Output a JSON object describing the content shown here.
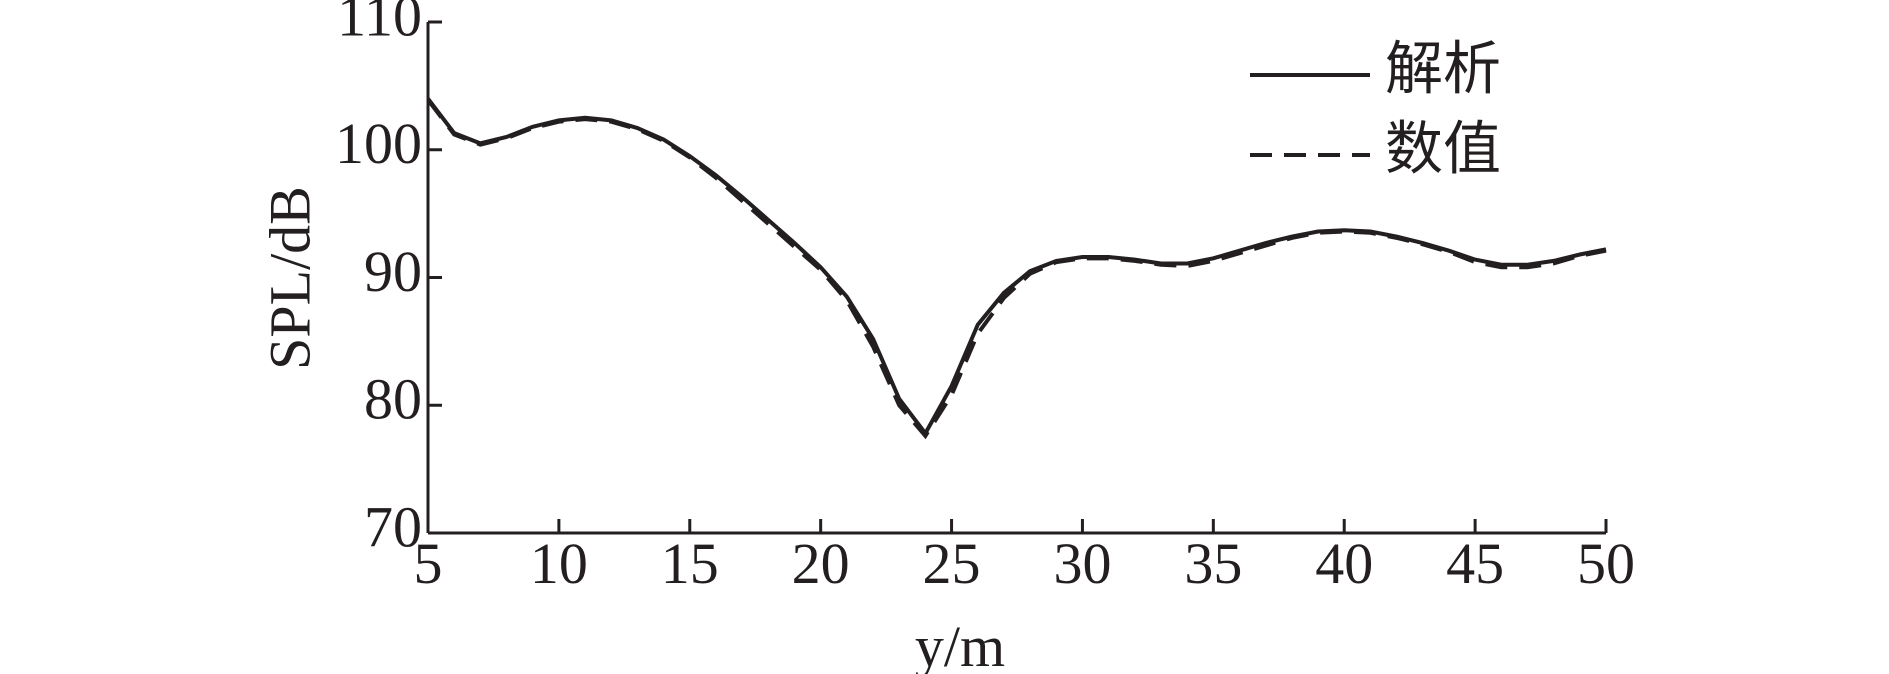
{
  "chart_data": {
    "type": "line",
    "xlabel": "y/m",
    "ylabel": "SPL/dB",
    "x": [
      5,
      6,
      7,
      8,
      9,
      10,
      11,
      12,
      13,
      14,
      15,
      16,
      17,
      18,
      19,
      20,
      21,
      22,
      23,
      24,
      25,
      26,
      27,
      28,
      29,
      30,
      31,
      32,
      33,
      34,
      35,
      36,
      37,
      38,
      39,
      40,
      41,
      42,
      43,
      44,
      45,
      46,
      47,
      48,
      49,
      50
    ],
    "series": [
      {
        "name": "解析",
        "color": "#231f20",
        "dash": "solid",
        "values": [
          104,
          101.3,
          100.5,
          101,
          101.8,
          102.3,
          102.5,
          102.3,
          101.7,
          100.8,
          99.5,
          98,
          96.3,
          94.5,
          92.7,
          90.8,
          88.5,
          85.2,
          80.5,
          77.8,
          81.5,
          86.3,
          88.8,
          90.5,
          91.3,
          91.6,
          91.6,
          91.4,
          91.1,
          91.1,
          91.5,
          92.1,
          92.7,
          93.2,
          93.6,
          93.7,
          93.6,
          93.2,
          92.7,
          92.1,
          91.4,
          91,
          91,
          91.3,
          91.8,
          92.2
        ]
      },
      {
        "name": "数值",
        "color": "#231f20",
        "dash": "dashed",
        "values": [
          103.9,
          101.2,
          100.4,
          100.9,
          101.7,
          102.2,
          102.4,
          102.2,
          101.6,
          100.7,
          99.4,
          97.8,
          96,
          94.2,
          92.4,
          90.6,
          88.2,
          84.6,
          80,
          77.6,
          80.8,
          85.6,
          88.4,
          90.3,
          91.2,
          91.5,
          91.5,
          91.3,
          91,
          90.9,
          91.3,
          91.9,
          92.5,
          93.1,
          93.5,
          93.6,
          93.5,
          93.1,
          92.6,
          92,
          91.2,
          90.8,
          90.8,
          91.1,
          91.7,
          92.1
        ]
      }
    ],
    "xlim": [
      5,
      50
    ],
    "xticks": [
      5,
      10,
      15,
      20,
      25,
      30,
      35,
      40,
      45,
      50
    ],
    "ylim": [
      70,
      110
    ],
    "yticks": [
      70,
      80,
      90,
      100,
      110
    ],
    "grid": false,
    "legend": "upper right"
  }
}
